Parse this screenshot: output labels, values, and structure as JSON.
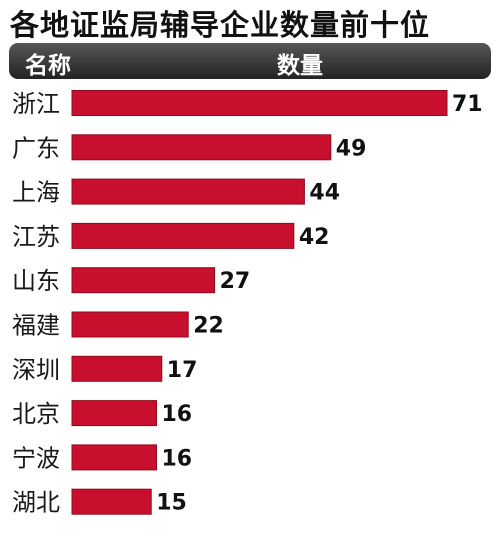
{
  "title": "各地证监局辅导企业数量前十位",
  "header": {
    "name_col": "名称",
    "count_col": "数量"
  },
  "colors": {
    "bar": "#c8102e",
    "bar_edge": "#8f0a1f",
    "header_bg": "#3a3a3a"
  },
  "chart_data": {
    "type": "bar",
    "orientation": "horizontal",
    "categories": [
      "浙江",
      "广东",
      "上海",
      "江苏",
      "山东",
      "福建",
      "深圳",
      "北京",
      "宁波",
      "湖北"
    ],
    "values": [
      71,
      49,
      44,
      42,
      27,
      22,
      17,
      16,
      16,
      15
    ],
    "title": "各地证监局辅导企业数量前十位",
    "xlabel": "",
    "ylabel": "",
    "xlim": [
      0,
      71
    ],
    "grid": false,
    "data_labels": true
  }
}
